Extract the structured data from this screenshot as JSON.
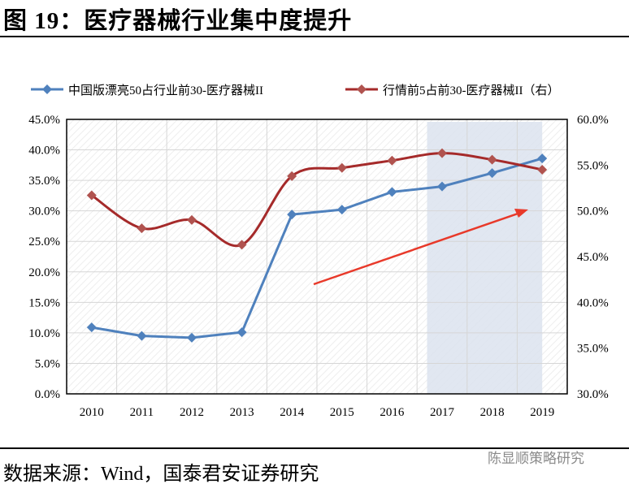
{
  "title": "图 19：医疗器械行业集中度提升",
  "source": "数据来源：Wind，国泰君安证券研究",
  "watermark": "陈显顺策略研究",
  "chart_data": {
    "type": "line",
    "categories": [
      "2010",
      "2011",
      "2012",
      "2013",
      "2014",
      "2015",
      "2016",
      "2017",
      "2018",
      "2019"
    ],
    "series": [
      {
        "name": "中国版漂亮50占行业前30-医疗器械II",
        "axis": "left",
        "color": "#4f81bd",
        "values": [
          10.9,
          9.5,
          9.2,
          10.1,
          29.4,
          30.2,
          33.1,
          34.0,
          36.2,
          38.6
        ]
      },
      {
        "name": "行情前5占前30-医疗器械II（右）",
        "axis": "right",
        "color": "#a52a2a",
        "values": [
          51.7,
          48.1,
          49.0,
          46.3,
          53.8,
          54.7,
          55.5,
          56.3,
          55.6,
          54.5
        ]
      }
    ],
    "y_left": {
      "min": 0,
      "max": 45,
      "ticks": [
        "0.0%",
        "5.0%",
        "10.0%",
        "15.0%",
        "20.0%",
        "25.0%",
        "30.0%",
        "35.0%",
        "40.0%",
        "45.0%"
      ]
    },
    "y_right": {
      "min": 30,
      "max": 60,
      "ticks": [
        "30.0%",
        "35.0%",
        "40.0%",
        "45.0%",
        "50.0%",
        "55.0%",
        "60.0%"
      ]
    },
    "highlight_range": [
      "2017",
      "2019"
    ],
    "highlight_color": "#dce3ef",
    "trend_arrow_color": "#e8392a",
    "grid": true,
    "legend": "top"
  }
}
